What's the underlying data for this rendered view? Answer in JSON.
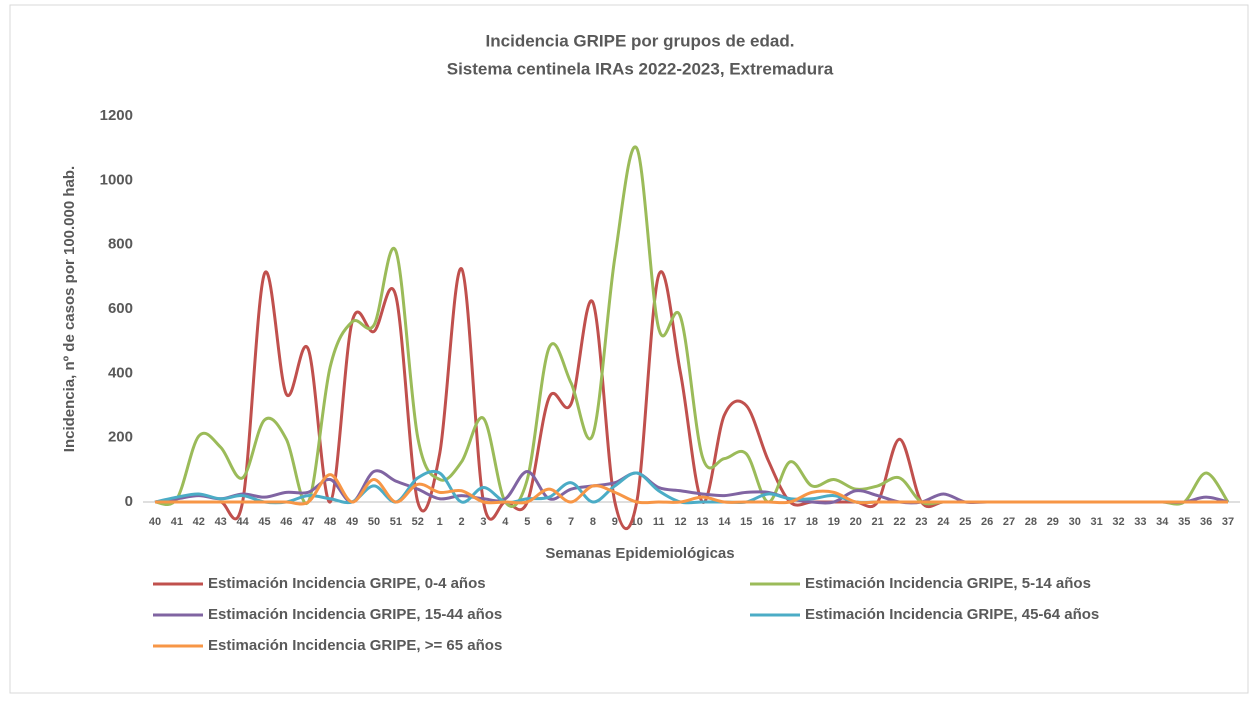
{
  "chart_data": {
    "type": "line",
    "title": "Incidencia GRIPE por grupos de edad.",
    "subtitle": "Sistema centinela IRAs 2022-2023, Extremadura",
    "x_label": "Semanas Epidemiológicas",
    "y_label": "Incidencia, nº de casos por 100.000 hab.",
    "categories": [
      "40",
      "41",
      "42",
      "43",
      "44",
      "45",
      "46",
      "47",
      "48",
      "49",
      "50",
      "51",
      "52",
      "1",
      "2",
      "3",
      "4",
      "5",
      "6",
      "7",
      "8",
      "9",
      "10",
      "11",
      "12",
      "13",
      "14",
      "15",
      "16",
      "17",
      "18",
      "19",
      "20",
      "21",
      "22",
      "23",
      "24",
      "25",
      "26",
      "27",
      "28",
      "29",
      "30",
      "31",
      "32",
      "33",
      "34",
      "35",
      "36",
      "37"
    ],
    "ylim": [
      0,
      1200
    ],
    "yticks": [
      0,
      200,
      400,
      600,
      800,
      1000,
      1200
    ],
    "grid": false,
    "legend": "bottom",
    "smooth": true,
    "series": [
      {
        "name": "Estimación Incidencia GRIPE, 0-4 años",
        "color": "#c0504d",
        "values": [
          0,
          0,
          0,
          0,
          0,
          710,
          335,
          475,
          0,
          560,
          530,
          640,
          0,
          150,
          725,
          0,
          0,
          0,
          325,
          305,
          620,
          0,
          0,
          705,
          400,
          0,
          270,
          300,
          130,
          0,
          0,
          0,
          0,
          0,
          195,
          0,
          0,
          0,
          0,
          0,
          0,
          0,
          0,
          0,
          0,
          0,
          0,
          0,
          0,
          0
        ]
      },
      {
        "name": "Estimación Incidencia GRIPE, 5-14 años",
        "color": "#9bbb59",
        "values": [
          0,
          10,
          205,
          170,
          75,
          255,
          195,
          0,
          420,
          560,
          550,
          780,
          200,
          70,
          125,
          260,
          0,
          70,
          480,
          370,
          210,
          760,
          1100,
          540,
          575,
          140,
          135,
          150,
          0,
          125,
          50,
          70,
          40,
          50,
          75,
          0,
          0,
          0,
          0,
          0,
          0,
          0,
          0,
          0,
          0,
          0,
          0,
          0,
          90,
          0
        ]
      },
      {
        "name": "Estimación Incidencia GRIPE, 15-44 años",
        "color": "#8064a2",
        "values": [
          0,
          10,
          20,
          10,
          25,
          15,
          30,
          30,
          70,
          0,
          95,
          65,
          40,
          10,
          20,
          10,
          10,
          95,
          10,
          40,
          50,
          60,
          90,
          45,
          35,
          25,
          20,
          30,
          30,
          10,
          0,
          0,
          35,
          20,
          0,
          0,
          25,
          0,
          0,
          0,
          0,
          0,
          0,
          0,
          0,
          0,
          0,
          0,
          15,
          0
        ]
      },
      {
        "name": "Estimación Incidencia GRIPE, 45-64 años",
        "color": "#4bacc6",
        "values": [
          0,
          15,
          25,
          10,
          20,
          0,
          0,
          20,
          10,
          0,
          50,
          0,
          75,
          90,
          0,
          45,
          0,
          10,
          15,
          60,
          0,
          50,
          90,
          35,
          0,
          0,
          0,
          0,
          25,
          10,
          10,
          20,
          0,
          0,
          0,
          0,
          0,
          0,
          0,
          0,
          0,
          0,
          0,
          0,
          0,
          0,
          0,
          0,
          0,
          0
        ]
      },
      {
        "name": "Estimación Incidencia GRIPE, >= 65 años",
        "color": "#f79646",
        "values": [
          0,
          0,
          0,
          0,
          0,
          0,
          0,
          0,
          85,
          0,
          70,
          0,
          55,
          30,
          35,
          0,
          0,
          0,
          40,
          0,
          50,
          30,
          0,
          0,
          0,
          15,
          0,
          0,
          0,
          0,
          30,
          30,
          0,
          0,
          0,
          0,
          0,
          0,
          0,
          0,
          0,
          0,
          0,
          0,
          0,
          0,
          0,
          0,
          0,
          0
        ]
      }
    ]
  }
}
